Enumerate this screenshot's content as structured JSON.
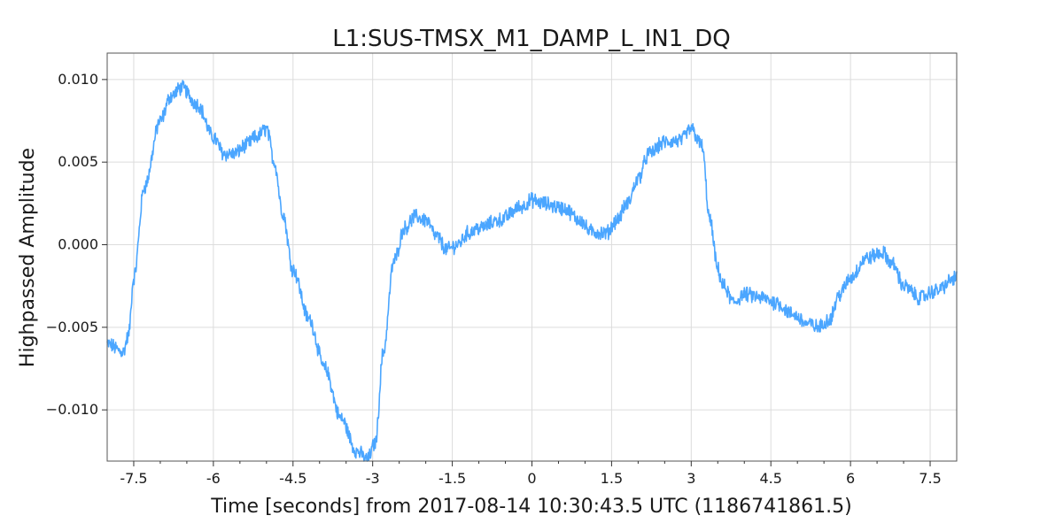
{
  "chart_data": {
    "type": "line",
    "title": "L1:SUS-TMSX_M1_DAMP_L_IN1_DQ",
    "xlabel": "Time [seconds] from 2017-08-14 10:30:43.5 UTC (1186741861.5)",
    "ylabel": "Highpassed Amplitude",
    "xlim": [
      -8.0,
      8.0
    ],
    "ylim": [
      -0.0131,
      0.0116
    ],
    "x_ticks": [
      -7.5,
      -6,
      -4.5,
      -3,
      -1.5,
      0,
      1.5,
      3,
      4.5,
      6,
      7.5
    ],
    "x_tick_labels": [
      "-7.5",
      "-6",
      "-4.5",
      "-3",
      "-1.5",
      "0",
      "1.5",
      "3",
      "4.5",
      "6",
      "7.5"
    ],
    "x_minor_ticks": [
      -7,
      -6.5,
      -5.5,
      -5,
      -4,
      -3.5,
      -2.5,
      -2,
      -1,
      -0.5,
      0.5,
      1,
      2,
      2.5,
      3.5,
      4,
      5,
      5.5,
      6.5,
      7
    ],
    "y_ticks": [
      0.01,
      0.005,
      0.0,
      -0.005,
      -0.01
    ],
    "y_tick_labels": [
      "0.010",
      "0.005",
      "0.000",
      "−0.005",
      "−0.010"
    ],
    "grid": true,
    "series": [
      {
        "color": "#4ba6ff",
        "noise_amplitude": 0.0004,
        "x": [
          -8.0,
          -7.7,
          -7.6,
          -7.5,
          -7.3,
          -7.0,
          -6.8,
          -6.6,
          -6.3,
          -6.0,
          -5.8,
          -5.6,
          -5.4,
          -5.2,
          -5.0,
          -4.85,
          -4.7,
          -4.5,
          -4.2,
          -3.9,
          -3.6,
          -3.3,
          -3.1,
          -2.95,
          -2.8,
          -2.6,
          -2.4,
          -2.2,
          -2.0,
          -1.8,
          -1.6,
          -1.4,
          -1.2,
          -1.0,
          -0.6,
          -0.2,
          0.0,
          0.2,
          0.6,
          0.9,
          1.1,
          1.4,
          1.6,
          1.8,
          2.0,
          2.2,
          2.5,
          2.8,
          3.0,
          3.2,
          3.35,
          3.5,
          3.6,
          3.8,
          4.0,
          4.3,
          4.6,
          4.9,
          5.2,
          5.4,
          5.6,
          5.8,
          6.0,
          6.3,
          6.6,
          6.8,
          7.0,
          7.3,
          7.6,
          8.0
        ],
        "y": [
          -0.006,
          -0.0065,
          -0.0055,
          -0.002,
          0.0035,
          0.0075,
          0.009,
          0.0095,
          0.0085,
          0.0065,
          0.0055,
          0.0055,
          0.006,
          0.0065,
          0.007,
          0.005,
          0.002,
          -0.0015,
          -0.0045,
          -0.0075,
          -0.0105,
          -0.0125,
          -0.013,
          -0.012,
          -0.0065,
          -0.001,
          0.001,
          0.0017,
          0.0015,
          0.0005,
          -0.0003,
          0.0,
          0.0007,
          0.001,
          0.0015,
          0.0023,
          0.0027,
          0.0025,
          0.0022,
          0.0015,
          0.0008,
          0.0007,
          0.0015,
          0.0025,
          0.004,
          0.0055,
          0.0062,
          0.0063,
          0.007,
          0.006,
          0.0015,
          -0.0015,
          -0.0025,
          -0.0035,
          -0.003,
          -0.0032,
          -0.0035,
          -0.0042,
          -0.0048,
          -0.005,
          -0.0045,
          -0.003,
          -0.002,
          -0.0008,
          -0.0005,
          -0.0012,
          -0.0025,
          -0.0032,
          -0.0028,
          -0.002
        ]
      }
    ]
  }
}
